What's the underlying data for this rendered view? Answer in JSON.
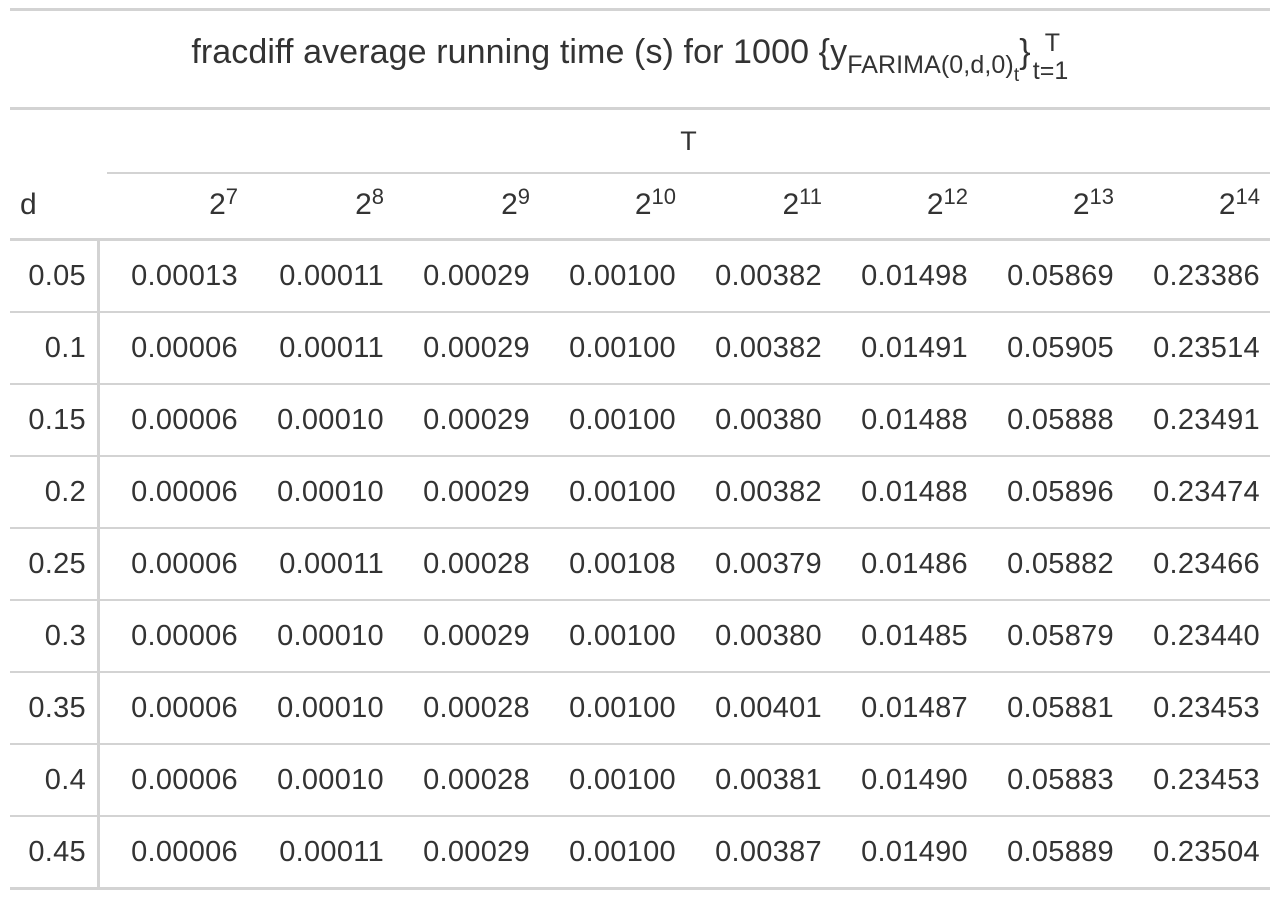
{
  "title": {
    "main": "fracdiff average running time (s) for 1000 {y",
    "sub_farima": "FARIMA(0,d,0)",
    "sub_t": "t",
    "close": "}",
    "sup_T": "T",
    "sub_t1": "t=1"
  },
  "spanner": "T",
  "stub_header": "d",
  "columns": [
    {
      "base": "2",
      "exp": "7"
    },
    {
      "base": "2",
      "exp": "8"
    },
    {
      "base": "2",
      "exp": "9"
    },
    {
      "base": "2",
      "exp": "10"
    },
    {
      "base": "2",
      "exp": "11"
    },
    {
      "base": "2",
      "exp": "12"
    },
    {
      "base": "2",
      "exp": "13"
    },
    {
      "base": "2",
      "exp": "14"
    }
  ],
  "rows": [
    {
      "d": "0.05",
      "values": [
        "0.00013",
        "0.00011",
        "0.00029",
        "0.00100",
        "0.00382",
        "0.01498",
        "0.05869",
        "0.23386"
      ]
    },
    {
      "d": "0.1",
      "values": [
        "0.00006",
        "0.00011",
        "0.00029",
        "0.00100",
        "0.00382",
        "0.01491",
        "0.05905",
        "0.23514"
      ]
    },
    {
      "d": "0.15",
      "values": [
        "0.00006",
        "0.00010",
        "0.00029",
        "0.00100",
        "0.00380",
        "0.01488",
        "0.05888",
        "0.23491"
      ]
    },
    {
      "d": "0.2",
      "values": [
        "0.00006",
        "0.00010",
        "0.00029",
        "0.00100",
        "0.00382",
        "0.01488",
        "0.05896",
        "0.23474"
      ]
    },
    {
      "d": "0.25",
      "values": [
        "0.00006",
        "0.00011",
        "0.00028",
        "0.00108",
        "0.00379",
        "0.01486",
        "0.05882",
        "0.23466"
      ]
    },
    {
      "d": "0.3",
      "values": [
        "0.00006",
        "0.00010",
        "0.00029",
        "0.00100",
        "0.00380",
        "0.01485",
        "0.05879",
        "0.23440"
      ]
    },
    {
      "d": "0.35",
      "values": [
        "0.00006",
        "0.00010",
        "0.00028",
        "0.00100",
        "0.00401",
        "0.01487",
        "0.05881",
        "0.23453"
      ]
    },
    {
      "d": "0.4",
      "values": [
        "0.00006",
        "0.00010",
        "0.00028",
        "0.00100",
        "0.00381",
        "0.01490",
        "0.05883",
        "0.23453"
      ]
    },
    {
      "d": "0.45",
      "values": [
        "0.00006",
        "0.00011",
        "0.00029",
        "0.00100",
        "0.00387",
        "0.01490",
        "0.05889",
        "0.23504"
      ]
    }
  ]
}
